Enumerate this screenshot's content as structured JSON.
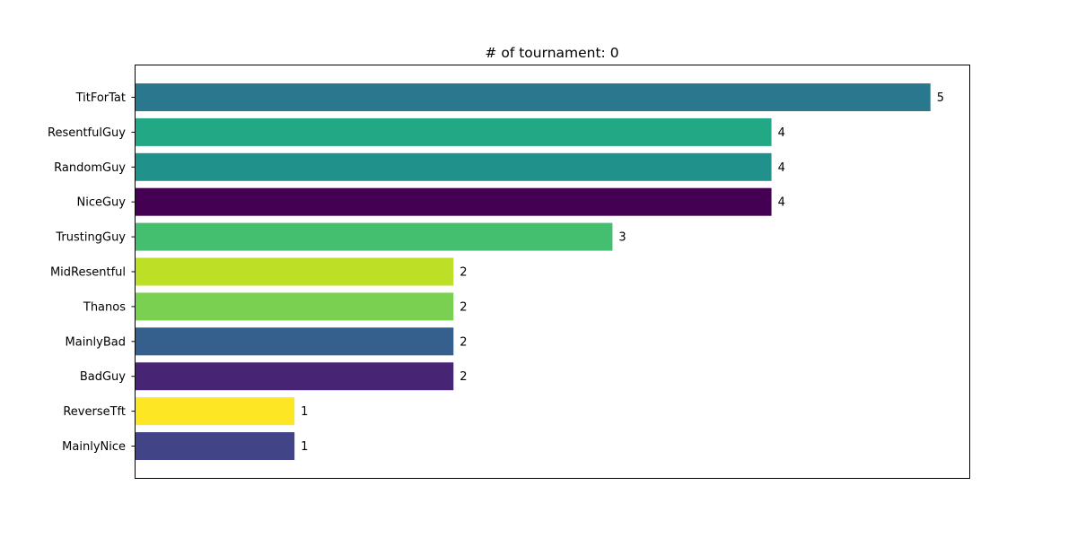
{
  "chart_data": {
    "type": "bar",
    "orientation": "horizontal",
    "title": "# of tournament: 0",
    "xlabel": "",
    "ylabel": "",
    "xlim": [
      0,
      5.25
    ],
    "x_ticks_visible": false,
    "grid": false,
    "legend": "none",
    "categories": [
      "TitForTat",
      "ResentfulGuy",
      "RandomGuy",
      "NiceGuy",
      "TrustingGuy",
      "MidResentful",
      "Thanos",
      "MainlyBad",
      "BadGuy",
      "ReverseTft",
      "MainlyNice"
    ],
    "values": [
      5,
      4,
      4,
      4,
      3,
      2,
      2,
      2,
      2,
      1,
      1
    ],
    "colors": [
      "#2a788e",
      "#22a884",
      "#21918c",
      "#440154",
      "#44bf70",
      "#bddf26",
      "#7ad151",
      "#355f8d",
      "#482475",
      "#fde725",
      "#414487"
    ],
    "value_labels": [
      "5",
      "4",
      "4",
      "4",
      "3",
      "2",
      "2",
      "2",
      "2",
      "1",
      "1"
    ]
  }
}
